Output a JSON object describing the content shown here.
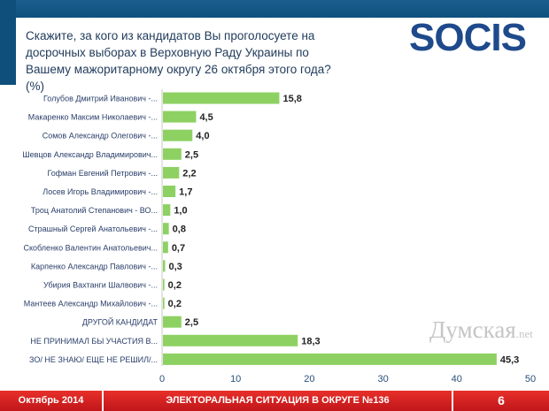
{
  "header": {
    "title": "Скажите, за кого из кандидатов Вы проголосуете на досрочных выборах в Верховную Раду Украины по Вашему мажоритарному округу 26 октября этого года? (%)",
    "logo": "SOCIS"
  },
  "chart_data": {
    "type": "bar",
    "orientation": "horizontal",
    "title": "Скажите, за кого из кандидатов Вы проголосуете на досрочных выборах в Верховную Раду Украины по Вашему мажоритарному округу 26 октября этого года? (%)",
    "categories": [
      "Голубов Дмитрий Иванович -...",
      "Макаренко Максим Николаевич -...",
      "Сомов Александр Олегович -...",
      "Шевцов Александр Владимирович...",
      "Гофман Евгений Петрович -...",
      "Лосев Игорь Владимирович -...",
      "Троц Анатолий Степанович - ВО...",
      "Страшный Сергей Анатольевич -...",
      "Скобленко Валентин Анатольевич...",
      "Карпенко Александр Павлович -...",
      "Убирия Вахтанги Шалвович -...",
      "Мантеев Александр Михайлович -...",
      "ДРУГОЙ КАНДИДАТ",
      "НЕ ПРИНИМАЛ БЫ УЧАСТИЯ В...",
      "ЗО/ НЕ ЗНАЮ/ ЕЩЕ НЕ РЕШИЛ/..."
    ],
    "values": [
      15.8,
      4.5,
      4.0,
      2.5,
      2.2,
      1.7,
      1.0,
      0.8,
      0.7,
      0.3,
      0.2,
      0.2,
      2.5,
      18.3,
      45.3
    ],
    "labels": [
      "15,8",
      "4,5",
      "4,0",
      "2,5",
      "2,2",
      "1,7",
      "1,0",
      "0,8",
      "0,7",
      "0,3",
      "0,2",
      "0,2",
      "2,5",
      "18,3",
      "45,3"
    ],
    "xlim": [
      0,
      50
    ],
    "xticks": [
      "0",
      "10",
      "20",
      "30",
      "40",
      "50"
    ],
    "bar_color": "#8ed163",
    "grid": false
  },
  "footer": {
    "date": "Октябрь 2014",
    "section": "ЭЛЕКТОРАЛЬНАЯ СИТУАЦИЯ В ОКРУГЕ №136",
    "page": "6"
  },
  "watermark": {
    "main": "Думская",
    "suffix": ".net"
  }
}
